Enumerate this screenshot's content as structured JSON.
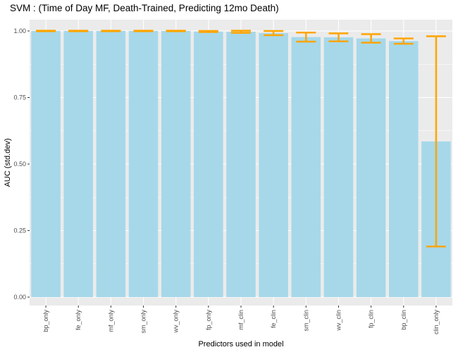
{
  "chart_data": {
    "type": "bar",
    "title": "SVM : (Time of Day MF, Death-Trained, Predicting 12mo Death)",
    "xlabel": "Predictors used in model",
    "ylabel": "AUC (std.dev)",
    "ylim": [
      0,
      1.05
    ],
    "yticks": [
      "0.00",
      "0.25",
      "0.50",
      "0.75",
      "1.00"
    ],
    "ytick_values": [
      0,
      0.25,
      0.5,
      0.75,
      1.0
    ],
    "categories": [
      "bp_only",
      "fe_only",
      "mf_only",
      "sm_only",
      "wv_only",
      "fp_only",
      "mf_clin",
      "fe_clin",
      "sm_clin",
      "wv_clin",
      "fp_clin",
      "bp_clin",
      "clin_only"
    ],
    "values": [
      1.0,
      1.0,
      1.0,
      1.0,
      1.0,
      0.998,
      0.997,
      0.992,
      0.977,
      0.976,
      0.972,
      0.962,
      0.585
    ],
    "error": [
      0.001,
      0.001,
      0.001,
      0.001,
      0.001,
      0.002,
      0.004,
      0.008,
      0.017,
      0.015,
      0.016,
      0.01,
      0.395
    ],
    "grid": true,
    "colors": {
      "bar": "#a6d8ea",
      "error_bar": "#ffa500",
      "panel": "#ebebeb",
      "grid": "#ffffff"
    }
  }
}
